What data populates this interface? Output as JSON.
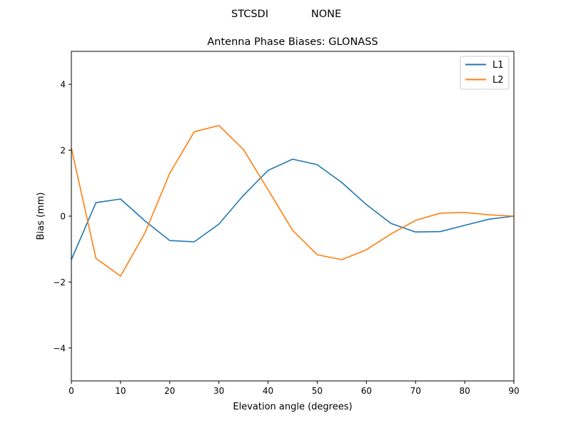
{
  "figure": {
    "suptitle_left": "STCSDI",
    "suptitle_right": "NONE"
  },
  "chart_data": {
    "type": "line",
    "title": "Antenna Phase Biases: GLONASS",
    "xlabel": "Elevation angle (degrees)",
    "ylabel": "Bias (mm)",
    "xlim": [
      0,
      90
    ],
    "ylim": [
      -5,
      5
    ],
    "xticks": [
      0,
      10,
      20,
      30,
      40,
      50,
      60,
      70,
      80,
      90
    ],
    "yticks": [
      -4,
      -2,
      0,
      2,
      4
    ],
    "ytick_labels": [
      "−4",
      "−2",
      "0",
      "2",
      "4"
    ],
    "grid": false,
    "legend_position": "upper right",
    "x": [
      0,
      5,
      10,
      15,
      20,
      25,
      30,
      35,
      40,
      45,
      50,
      55,
      60,
      65,
      70,
      75,
      80,
      85,
      90
    ],
    "series": [
      {
        "name": "L1",
        "color": "#1f77b4",
        "values": [
          -1.32,
          0.41,
          0.52,
          -0.15,
          -0.74,
          -0.78,
          -0.24,
          0.63,
          1.39,
          1.73,
          1.56,
          1.02,
          0.35,
          -0.22,
          -0.48,
          -0.47,
          -0.28,
          -0.09,
          0.0
        ]
      },
      {
        "name": "L2",
        "color": "#ff7f0e",
        "values": [
          2.06,
          -1.28,
          -1.82,
          -0.5,
          1.3,
          2.56,
          2.75,
          2.02,
          0.8,
          -0.43,
          -1.17,
          -1.32,
          -1.02,
          -0.54,
          -0.13,
          0.09,
          0.11,
          0.04,
          0.0
        ]
      }
    ]
  }
}
